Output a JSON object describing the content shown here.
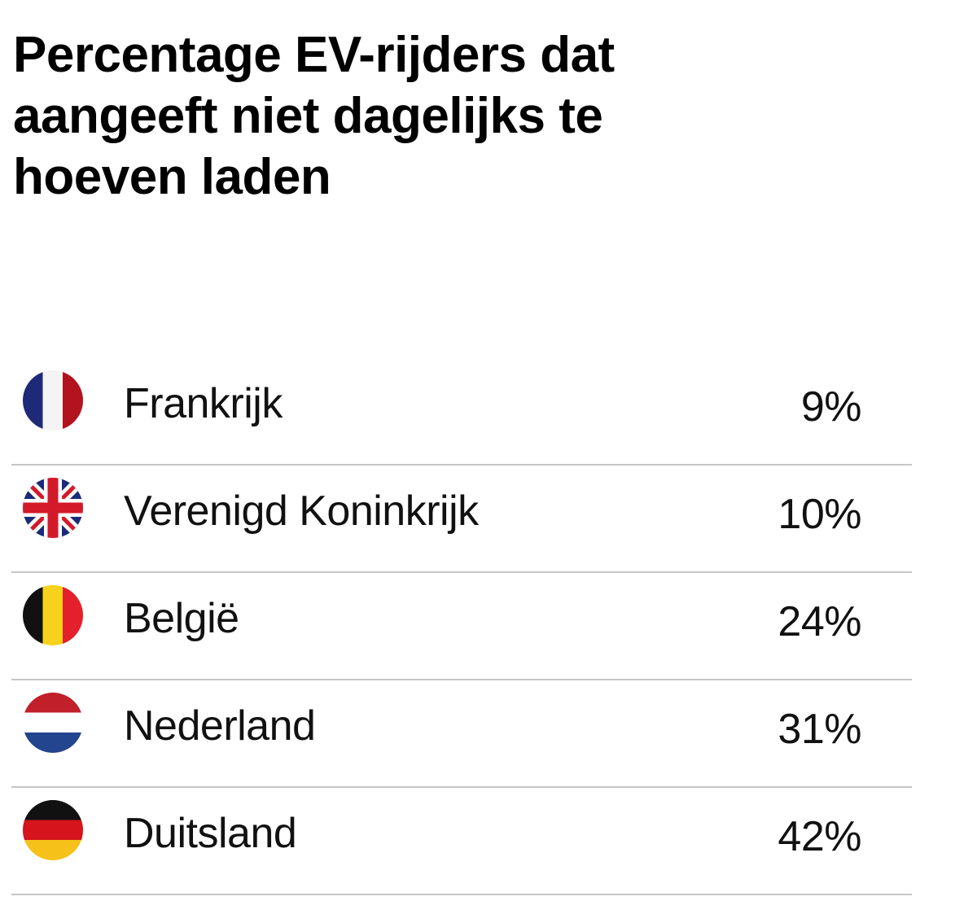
{
  "chart_data": {
    "type": "table",
    "title": "Percentage EV-rijders dat aangeeft niet dagelijks te hoeven laden",
    "rows": [
      {
        "country": "Frankrijk",
        "value": 9,
        "label": "9%",
        "flag_icon": "france-flag-icon",
        "colors": [
          "#1d2a78",
          "#f4f4f4",
          "#b3121f"
        ]
      },
      {
        "country": "Verenigd Koninkrijk",
        "value": 10,
        "label": "10%",
        "flag_icon": "uk-flag-icon",
        "colors": [
          "#1a2b7a",
          "#ffffff",
          "#d31a2b"
        ]
      },
      {
        "country": "België",
        "value": 24,
        "label": "24%",
        "flag_icon": "belgium-flag-icon",
        "colors": [
          "#111111",
          "#f7d21c",
          "#e3202b"
        ]
      },
      {
        "country": "Nederland",
        "value": 31,
        "label": "31%",
        "flag_icon": "netherlands-flag-icon",
        "colors": [
          "#c11f2a",
          "#ffffff",
          "#23448f"
        ]
      },
      {
        "country": "Duitsland",
        "value": 42,
        "label": "42%",
        "flag_icon": "germany-flag-icon",
        "colors": [
          "#111111",
          "#d5141c",
          "#f6c21a"
        ]
      }
    ]
  }
}
